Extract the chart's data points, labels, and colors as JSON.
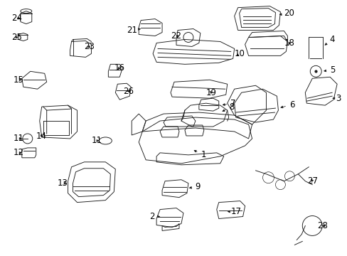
{
  "bg_color": "#ffffff",
  "line_color": "#1a1a1a",
  "fig_width": 4.89,
  "fig_height": 3.6,
  "dpi": 100,
  "lw": 0.65,
  "label_fontsize": 8.5
}
